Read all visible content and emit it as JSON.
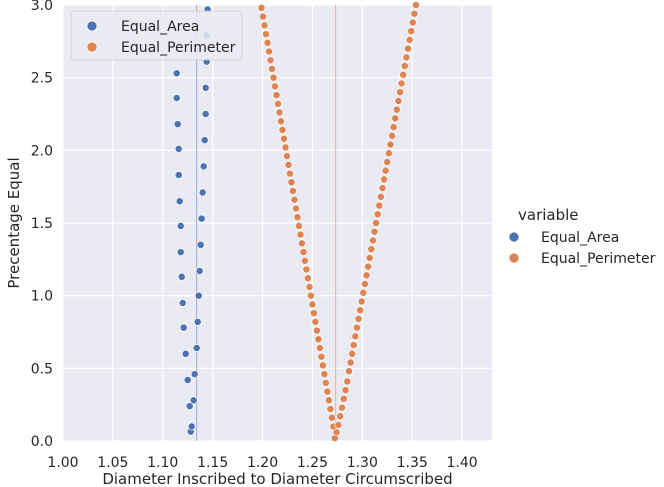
{
  "chart_data": {
    "type": "scatter",
    "title": "",
    "xlabel": "Diameter Inscribed to Diameter Circumscribed",
    "ylabel": "Precentage Equal",
    "xlim": [
      1.0,
      1.43
    ],
    "ylim": [
      0.0,
      3.0
    ],
    "xticks": [
      1.0,
      1.05,
      1.1,
      1.15,
      1.2,
      1.25,
      1.3,
      1.35,
      1.4
    ],
    "xtick_labels": [
      "1.00",
      "1.05",
      "1.10",
      "1.15",
      "1.20",
      "1.25",
      "1.30",
      "1.35",
      "1.40"
    ],
    "yticks": [
      0.0,
      0.5,
      1.0,
      1.5,
      2.0,
      2.5,
      3.0
    ],
    "ytick_labels": [
      "0.0",
      "0.5",
      "1.0",
      "1.5",
      "2.0",
      "2.5",
      "3.0"
    ],
    "grid": true,
    "background": "#eaeaf2",
    "grid_color": "#ffffff",
    "reference_lines": [
      {
        "x": 1.1339,
        "color": "#aab4dc"
      },
      {
        "x": 1.2732,
        "color": "#e8b8a8"
      }
    ],
    "legend_inside": {
      "position": "upper-left",
      "entries": [
        "Equal_Area",
        "Equal_Perimeter"
      ]
    },
    "legend_outside": {
      "title": "variable",
      "position": "right",
      "entries": [
        "Equal_Area",
        "Equal_Perimeter"
      ]
    },
    "series": [
      {
        "name": "Equal_Area",
        "color": "#4c72b0",
        "points": [
          [
            1.128,
            0.065
          ],
          [
            1.129,
            0.1
          ],
          [
            1.127,
            0.24
          ],
          [
            1.131,
            0.28
          ],
          [
            1.125,
            0.42
          ],
          [
            1.132,
            0.46
          ],
          [
            1.123,
            0.6
          ],
          [
            1.134,
            0.64
          ],
          [
            1.121,
            0.78
          ],
          [
            1.135,
            0.82
          ],
          [
            1.12,
            0.95
          ],
          [
            1.136,
            1.0
          ],
          [
            1.119,
            1.13
          ],
          [
            1.137,
            1.17
          ],
          [
            1.118,
            1.3
          ],
          [
            1.138,
            1.35
          ],
          [
            1.118,
            1.48
          ],
          [
            1.139,
            1.53
          ],
          [
            1.117,
            1.65
          ],
          [
            1.14,
            1.71
          ],
          [
            1.116,
            1.83
          ],
          [
            1.141,
            1.89
          ],
          [
            1.116,
            2.01
          ],
          [
            1.142,
            2.07
          ],
          [
            1.115,
            2.18
          ],
          [
            1.143,
            2.25
          ],
          [
            1.114,
            2.36
          ],
          [
            1.143,
            2.43
          ],
          [
            1.114,
            2.53
          ],
          [
            1.144,
            2.61
          ],
          [
            1.144,
            2.79
          ],
          [
            1.145,
            2.97
          ]
        ]
      },
      {
        "name": "Equal_Perimeter",
        "color": "#dd8452",
        "points": [
          [
            1.2725,
            0.02
          ],
          [
            1.2742,
            0.06
          ],
          [
            1.271,
            0.1
          ],
          [
            1.276,
            0.11
          ],
          [
            1.2695,
            0.16
          ],
          [
            1.2778,
            0.17
          ],
          [
            1.268,
            0.22
          ],
          [
            1.2796,
            0.23
          ],
          [
            1.2665,
            0.28
          ],
          [
            1.2814,
            0.29
          ],
          [
            1.265,
            0.34
          ],
          [
            1.2832,
            0.35
          ],
          [
            1.2635,
            0.4
          ],
          [
            1.285,
            0.41
          ],
          [
            1.262,
            0.46
          ],
          [
            1.2866,
            0.48
          ],
          [
            1.2605,
            0.52
          ],
          [
            1.2882,
            0.54
          ],
          [
            1.259,
            0.58
          ],
          [
            1.2575,
            0.64
          ],
          [
            1.256,
            0.7
          ],
          [
            1.2545,
            0.76
          ],
          [
            1.253,
            0.82
          ],
          [
            1.2515,
            0.88
          ],
          [
            1.25,
            0.94
          ],
          [
            1.2485,
            1.0
          ],
          [
            1.247,
            1.06
          ],
          [
            1.2455,
            1.12
          ],
          [
            1.244,
            1.18
          ],
          [
            1.2425,
            1.24
          ],
          [
            1.241,
            1.3
          ],
          [
            1.2395,
            1.36
          ],
          [
            1.238,
            1.42
          ],
          [
            1.2365,
            1.48
          ],
          [
            1.235,
            1.54
          ],
          [
            1.2335,
            1.6
          ],
          [
            1.232,
            1.66
          ],
          [
            1.2305,
            1.72
          ],
          [
            1.229,
            1.78
          ],
          [
            1.2275,
            1.84
          ],
          [
            1.226,
            1.9
          ],
          [
            1.2245,
            1.96
          ],
          [
            1.223,
            2.02
          ],
          [
            1.2215,
            2.08
          ],
          [
            1.22,
            2.14
          ],
          [
            1.2185,
            2.2
          ],
          [
            1.217,
            2.26
          ],
          [
            1.2155,
            2.32
          ],
          [
            1.214,
            2.38
          ],
          [
            1.2125,
            2.44
          ],
          [
            1.211,
            2.5
          ],
          [
            1.2095,
            2.56
          ],
          [
            1.208,
            2.62
          ],
          [
            1.2065,
            2.68
          ],
          [
            1.205,
            2.74
          ],
          [
            1.2035,
            2.8
          ],
          [
            1.202,
            2.86
          ],
          [
            1.2005,
            2.92
          ],
          [
            1.199,
            2.98
          ],
          [
            1.2898,
            0.6
          ],
          [
            1.2914,
            0.66
          ],
          [
            1.293,
            0.72
          ],
          [
            1.2946,
            0.78
          ],
          [
            1.2962,
            0.84
          ],
          [
            1.2978,
            0.9
          ],
          [
            1.2994,
            0.96
          ],
          [
            1.301,
            1.02
          ],
          [
            1.3026,
            1.08
          ],
          [
            1.3042,
            1.14
          ],
          [
            1.3058,
            1.2
          ],
          [
            1.3074,
            1.26
          ],
          [
            1.309,
            1.32
          ],
          [
            1.3106,
            1.38
          ],
          [
            1.3122,
            1.44
          ],
          [
            1.3138,
            1.5
          ],
          [
            1.3154,
            1.56
          ],
          [
            1.317,
            1.62
          ],
          [
            1.3186,
            1.68
          ],
          [
            1.3202,
            1.74
          ],
          [
            1.3218,
            1.8
          ],
          [
            1.3234,
            1.86
          ],
          [
            1.325,
            1.92
          ],
          [
            1.3266,
            1.98
          ],
          [
            1.3282,
            2.04
          ],
          [
            1.3298,
            2.1
          ],
          [
            1.3314,
            2.16
          ],
          [
            1.333,
            2.22
          ],
          [
            1.3346,
            2.28
          ],
          [
            1.3362,
            2.34
          ],
          [
            1.3378,
            2.4
          ],
          [
            1.3394,
            2.46
          ],
          [
            1.341,
            2.52
          ],
          [
            1.3426,
            2.58
          ],
          [
            1.3442,
            2.64
          ],
          [
            1.3458,
            2.7
          ],
          [
            1.3474,
            2.76
          ],
          [
            1.349,
            2.82
          ],
          [
            1.3506,
            2.88
          ],
          [
            1.3522,
            2.94
          ],
          [
            1.3538,
            3.0
          ]
        ]
      }
    ]
  }
}
